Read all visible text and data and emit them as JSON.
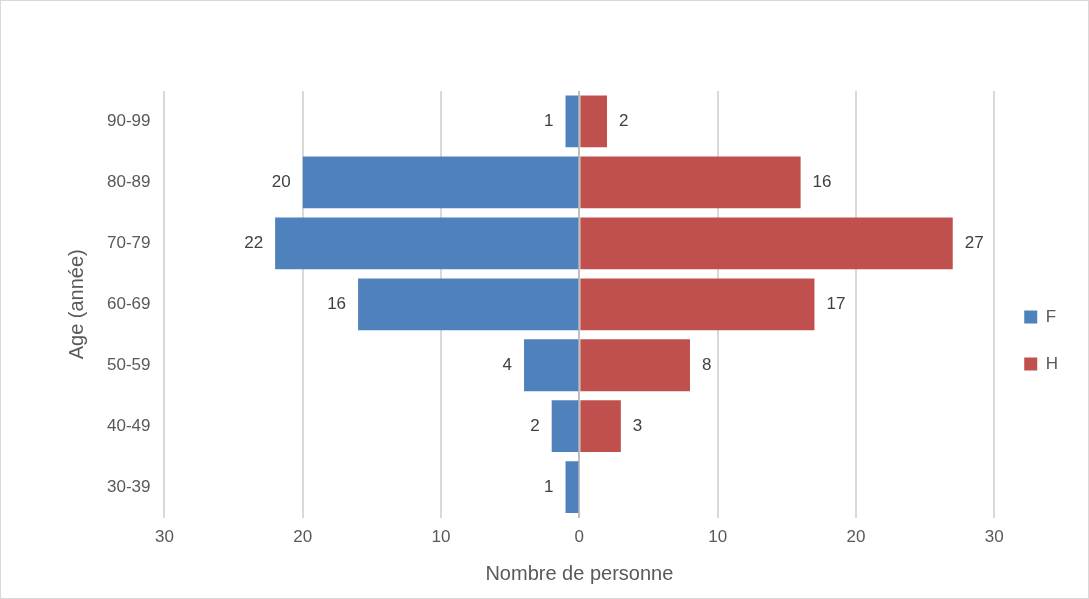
{
  "chart_data": {
    "type": "bar",
    "orientation": "horizontal",
    "xlabel": "Nombre de personne",
    "ylabel": "Age (année)",
    "categories": [
      "90-99",
      "80-89",
      "70-79",
      "60-69",
      "50-59",
      "40-49",
      "30-39"
    ],
    "series": [
      {
        "name": "F",
        "color": "#4f81bd",
        "values": [
          1,
          20,
          22,
          16,
          4,
          2,
          1
        ],
        "base": [
          -1,
          -20,
          -22,
          -16,
          -4,
          -2,
          -1
        ],
        "value_labels": [
          "1",
          "20",
          "22",
          "16",
          "4",
          "2",
          "1"
        ]
      },
      {
        "name": "H",
        "color": "#c0504d",
        "values": [
          2,
          16,
          27,
          17,
          8,
          3,
          null
        ],
        "base": [
          0,
          0,
          0,
          0,
          0,
          0,
          null
        ],
        "value_labels": [
          "2",
          "16",
          "27",
          "17",
          "8",
          "3",
          null
        ]
      }
    ],
    "xlim": [
      -30,
      30
    ],
    "xticks": [
      {
        "value": -30,
        "label": "30"
      },
      {
        "value": -20,
        "label": "20"
      },
      {
        "value": -10,
        "label": "10"
      },
      0,
      10,
      20,
      30
    ],
    "grid": "x",
    "legend": "right"
  }
}
